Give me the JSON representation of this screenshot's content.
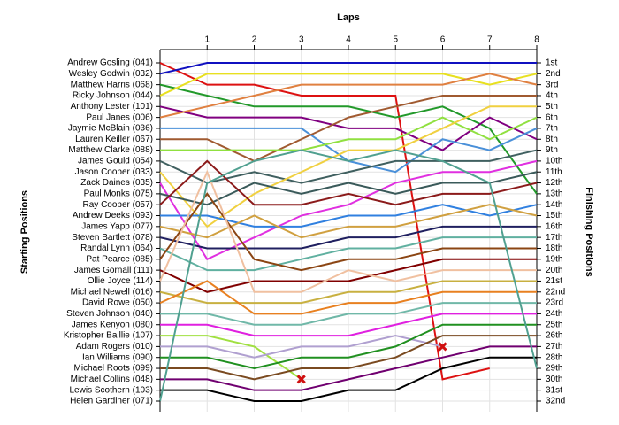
{
  "chart_data": {
    "type": "line",
    "title": "Laps",
    "y_label": "Starting Positions",
    "y2_label": "Finishing Positions",
    "x": [
      0,
      1,
      2,
      3,
      4,
      5,
      6,
      7,
      8
    ],
    "xlim": [
      0,
      8
    ],
    "xticks": [
      1,
      2,
      3,
      4,
      5,
      6,
      7,
      8
    ],
    "ylim": [
      1,
      32
    ],
    "y_inverted": true,
    "grid": true,
    "end_marker": "x",
    "finishing_positions": [
      "1st",
      "2nd",
      "3rd",
      "4th",
      "5th",
      "6th",
      "7th",
      "8th",
      "9th",
      "10th",
      "11th",
      "12th",
      "13th",
      "14th",
      "15th",
      "16th",
      "17th",
      "18th",
      "19th",
      "20th",
      "21st",
      "22nd",
      "23rd",
      "24th",
      "25th",
      "26th",
      "27th",
      "28th",
      "29th",
      "30th",
      "31st",
      "32nd"
    ],
    "series": [
      {
        "name": "Andrew Gosling (041)",
        "color": "#dd1111",
        "values": [
          1,
          3,
          3,
          4,
          4,
          4,
          30,
          29,
          null
        ]
      },
      {
        "name": "Wesley Godwin (032)",
        "color": "#1010c0",
        "values": [
          2,
          1,
          1,
          1,
          1,
          1,
          1,
          1,
          1
        ]
      },
      {
        "name": "Matthew Harris (068)",
        "color": "#22992a",
        "values": [
          3,
          4,
          5,
          5,
          5,
          6,
          5,
          7,
          13
        ]
      },
      {
        "name": "Ricky Johnson (044)",
        "color": "#e8e020",
        "values": [
          4,
          2,
          2,
          2,
          2,
          2,
          2,
          3,
          2
        ]
      },
      {
        "name": "Anthony Lester (101)",
        "color": "#800080",
        "values": [
          5,
          6,
          6,
          6,
          7,
          7,
          9,
          6,
          8
        ]
      },
      {
        "name": "Paul Janes (006)",
        "color": "#e08040",
        "values": [
          6,
          5,
          4,
          3,
          3,
          3,
          3,
          2,
          3
        ]
      },
      {
        "name": "Jaymie McBlain (036)",
        "color": "#4a90d9",
        "values": [
          7,
          7,
          7,
          7,
          10,
          11,
          8,
          9,
          7
        ]
      },
      {
        "name": "Lauren Keiller (067)",
        "color": "#a05a30",
        "values": [
          8,
          8,
          10,
          8,
          6,
          5,
          4,
          4,
          4
        ]
      },
      {
        "name": "Matthew Clarke (088)",
        "color": "#90e040",
        "values": [
          9,
          9,
          9,
          9,
          8,
          8,
          6,
          8,
          6
        ]
      },
      {
        "name": "James Gould (054)",
        "color": "#406060",
        "values": [
          10,
          12,
          11,
          12,
          11,
          10,
          10,
          10,
          9
        ]
      },
      {
        "name": "Jason Cooper (033)",
        "color": "#f0d040",
        "values": [
          11,
          16,
          13,
          11,
          9,
          9,
          7,
          5,
          5
        ]
      },
      {
        "name": "Zack Daines (035)",
        "color": "#e030e0",
        "values": [
          12,
          19,
          17,
          15,
          14,
          12,
          11,
          11,
          10
        ]
      },
      {
        "name": "Paul Monks (075)",
        "color": "#3a5a5a",
        "values": [
          13,
          14,
          12,
          13,
          12,
          13,
          12,
          12,
          11
        ]
      },
      {
        "name": "Ray Cooper (057)",
        "color": "#8b1a1a",
        "values": [
          14,
          10,
          14,
          14,
          13,
          14,
          13,
          13,
          12
        ]
      },
      {
        "name": "Andrew Deeks (093)",
        "color": "#3080e0",
        "values": [
          15,
          15,
          16,
          16,
          15,
          15,
          14,
          15,
          14
        ]
      },
      {
        "name": "James Yapp (077)",
        "color": "#d0a040",
        "values": [
          16,
          17,
          15,
          17,
          16,
          16,
          15,
          14,
          15
        ]
      },
      {
        "name": "Steven Bartlett (078)",
        "color": "#202060",
        "values": [
          17,
          18,
          18,
          18,
          17,
          17,
          16,
          16,
          16
        ]
      },
      {
        "name": "Randal Lynn (064)",
        "color": "#60b0a0",
        "values": [
          18,
          20,
          20,
          19,
          18,
          18,
          17,
          17,
          17
        ]
      },
      {
        "name": "Pat Pearce (085)",
        "color": "#8b4513",
        "values": [
          19,
          13,
          19,
          20,
          19,
          19,
          18,
          18,
          18
        ]
      },
      {
        "name": "James Gornall (111)",
        "color": "#800000",
        "values": [
          20,
          22,
          21,
          21,
          21,
          20,
          19,
          19,
          19
        ]
      },
      {
        "name": "Ollie Joyce (114)",
        "color": "#f0c0a0",
        "values": [
          21,
          11,
          22,
          22,
          20,
          21,
          20,
          20,
          20
        ]
      },
      {
        "name": "Michael Newell (016)",
        "color": "#c8b040",
        "values": [
          22,
          23,
          23,
          23,
          22,
          22,
          21,
          21,
          21
        ]
      },
      {
        "name": "David Rowe (050)",
        "color": "#e88020",
        "values": [
          23,
          21,
          24,
          24,
          23,
          23,
          22,
          22,
          22
        ]
      },
      {
        "name": "Steven Johnson (040)",
        "color": "#70b8a8",
        "values": [
          24,
          24,
          25,
          25,
          24,
          24,
          23,
          23,
          23
        ]
      },
      {
        "name": "James Kenyon (080)",
        "color": "#e020e0",
        "values": [
          25,
          25,
          26,
          26,
          26,
          25,
          24,
          24,
          24
        ]
      },
      {
        "name": "Kristopher Baillie (107)",
        "color": "#a0e040",
        "values": [
          26,
          26,
          27,
          30,
          null,
          null,
          null,
          null,
          null
        ]
      },
      {
        "name": "Adam Rogers (010)",
        "color": "#b0a0d0",
        "values": [
          27,
          27,
          28,
          27,
          27,
          26,
          27,
          null,
          null
        ]
      },
      {
        "name": "Ian Williams (090)",
        "color": "#209020",
        "values": [
          28,
          28,
          29,
          28,
          28,
          27,
          25,
          25,
          25
        ]
      },
      {
        "name": "Michael Roots (099)",
        "color": "#7a4a20",
        "values": [
          29,
          29,
          30,
          29,
          29,
          28,
          26,
          26,
          26
        ]
      },
      {
        "name": "Michael Collins (048)",
        "color": "#700070",
        "values": [
          30,
          30,
          31,
          31,
          30,
          29,
          28,
          27,
          27
        ]
      },
      {
        "name": "Lewis Scothern (103)",
        "color": "#000000",
        "values": [
          31,
          31,
          32,
          32,
          31,
          31,
          29,
          28,
          28
        ]
      },
      {
        "name": "Helen Gardiner (071)",
        "color": "#50a090",
        "values": [
          32,
          12,
          10,
          9,
          10,
          9,
          10,
          12,
          29
        ]
      }
    ]
  }
}
